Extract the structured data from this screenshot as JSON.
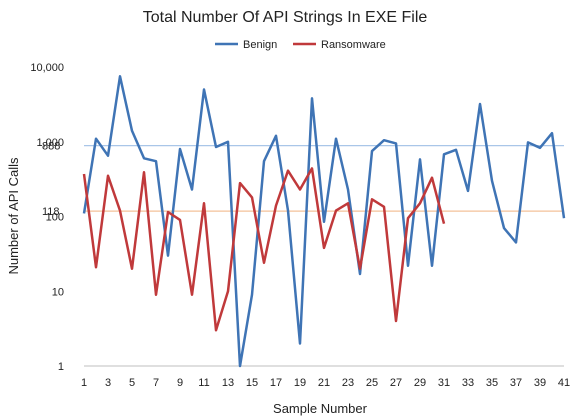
{
  "chart_data": {
    "type": "line",
    "title": "Total Number Of API Strings In EXE File",
    "xlabel": "Sample Number",
    "ylabel": "Number of API Calls",
    "yscale": "log",
    "ylim": [
      1,
      10000
    ],
    "xlim": [
      1,
      41
    ],
    "grid": false,
    "legend_position": "top-center",
    "y_ticks": [
      1,
      10,
      100,
      1000,
      10000
    ],
    "y_tick_labels": [
      "1",
      "10",
      "100",
      "1,000",
      "10,000"
    ],
    "x_ticks": [
      1,
      3,
      5,
      7,
      9,
      11,
      13,
      15,
      17,
      19,
      21,
      23,
      25,
      27,
      29,
      31,
      33,
      35,
      37,
      39,
      41
    ],
    "x_tick_labels": [
      "1",
      "3",
      "5",
      "7",
      "9",
      "11",
      "13",
      "15",
      "17",
      "19",
      "21",
      "23",
      "25",
      "27",
      "29",
      "31",
      "33",
      "35",
      "37",
      "39",
      "41"
    ],
    "reference_lines": [
      {
        "value": 888,
        "label": "888",
        "color": "#a9c6e8"
      },
      {
        "value": 118,
        "label": "118",
        "color": "#f4c29a"
      }
    ],
    "series": [
      {
        "name": "Benign",
        "color": "#3f74b5",
        "x": [
          1,
          2,
          3,
          4,
          5,
          6,
          7,
          8,
          9,
          10,
          11,
          12,
          13,
          14,
          15,
          16,
          17,
          18,
          19,
          20,
          21,
          22,
          23,
          24,
          25,
          26,
          27,
          28,
          29,
          30,
          31,
          32,
          33,
          34,
          35,
          36,
          37,
          38,
          39,
          40,
          41
        ],
        "values": [
          110,
          1100,
          650,
          7500,
          1400,
          600,
          550,
          30,
          800,
          230,
          5000,
          850,
          1000,
          1,
          9,
          550,
          1200,
          120,
          2,
          3800,
          85,
          1100,
          230,
          17,
          750,
          1050,
          950,
          22,
          580,
          22,
          680,
          780,
          220,
          3200,
          300,
          70,
          45,
          980,
          830,
          1300,
          95
        ]
      },
      {
        "name": "Ransomware",
        "color": "#c0393b",
        "x": [
          1,
          2,
          3,
          4,
          5,
          6,
          7,
          8,
          9,
          10,
          11,
          12,
          13,
          14,
          15,
          16,
          17,
          18,
          19,
          20,
          21,
          22,
          23,
          24,
          25,
          26,
          27,
          28,
          29,
          30,
          31
        ],
        "values": [
          370,
          21,
          350,
          120,
          20,
          390,
          9,
          115,
          90,
          9,
          150,
          3,
          10,
          280,
          180,
          24,
          140,
          410,
          230,
          440,
          38,
          120,
          150,
          20,
          170,
          135,
          4,
          95,
          150,
          330,
          80
        ]
      }
    ]
  }
}
